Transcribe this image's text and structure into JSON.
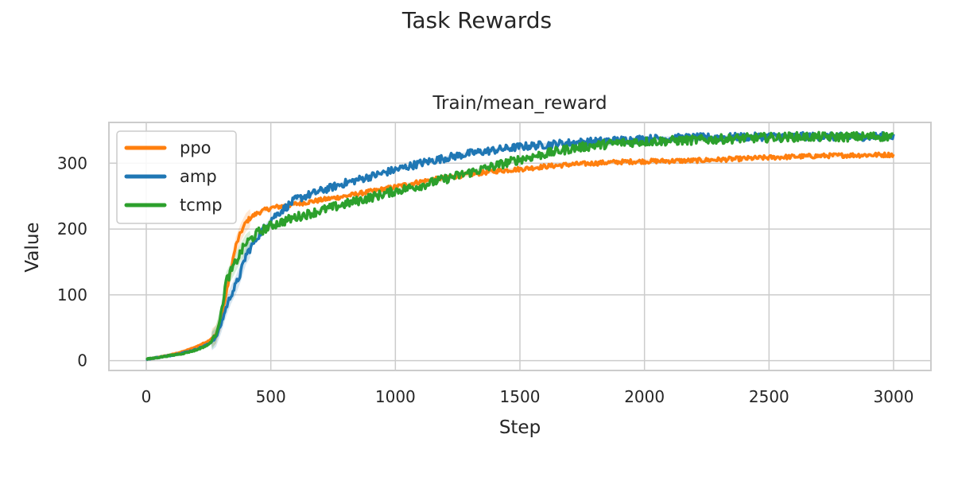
{
  "chart_data": {
    "type": "line",
    "title": "Task Rewards",
    "subtitle": "Train/mean_reward",
    "xlabel": "Step",
    "ylabel": "Value",
    "xlim": [
      -150,
      3150
    ],
    "ylim": [
      -15,
      362
    ],
    "xticks": [
      0,
      500,
      1000,
      1500,
      2000,
      2500,
      3000
    ],
    "yticks": [
      0,
      100,
      200,
      300
    ],
    "grid": true,
    "legend_position": "top-left",
    "series": [
      {
        "name": "ppo",
        "color": "#ff7f0e",
        "x": [
          0,
          50,
          100,
          150,
          200,
          250,
          280,
          300,
          320,
          340,
          360,
          380,
          400,
          420,
          450,
          500,
          600,
          700,
          800,
          900,
          1000,
          1100,
          1200,
          1300,
          1400,
          1500,
          1600,
          1700,
          1800,
          1900,
          2000,
          2200,
          2400,
          2600,
          2800,
          3000
        ],
        "y": [
          2,
          5,
          9,
          14,
          21,
          30,
          40,
          60,
          100,
          140,
          175,
          195,
          210,
          218,
          225,
          232,
          238,
          244,
          250,
          257,
          264,
          272,
          278,
          283,
          288,
          291,
          295,
          298,
          300,
          302,
          303,
          304,
          307,
          310,
          312,
          313
        ]
      },
      {
        "name": "amp",
        "color": "#1f77b4",
        "x": [
          0,
          50,
          100,
          150,
          200,
          250,
          280,
          300,
          320,
          340,
          360,
          380,
          400,
          450,
          500,
          550,
          600,
          700,
          800,
          900,
          1000,
          1100,
          1200,
          1300,
          1400,
          1500,
          1600,
          1700,
          1800,
          1900,
          2000,
          2200,
          2400,
          2600,
          2800,
          3000
        ],
        "y": [
          2,
          5,
          8,
          12,
          17,
          25,
          35,
          55,
          80,
          100,
          115,
          135,
          160,
          190,
          215,
          230,
          245,
          258,
          270,
          280,
          290,
          300,
          308,
          315,
          320,
          325,
          328,
          331,
          333,
          335,
          337,
          339,
          340,
          341,
          340,
          341
        ]
      },
      {
        "name": "tcmp",
        "color": "#2ca02c",
        "x": [
          0,
          50,
          100,
          150,
          200,
          250,
          280,
          300,
          320,
          340,
          360,
          380,
          400,
          450,
          500,
          600,
          700,
          800,
          900,
          1000,
          1100,
          1200,
          1300,
          1400,
          1500,
          1600,
          1700,
          1800,
          1900,
          2000,
          2200,
          2400,
          2600,
          2800,
          3000
        ],
        "y": [
          2,
          5,
          8,
          11,
          16,
          24,
          40,
          70,
          120,
          135,
          150,
          165,
          178,
          195,
          205,
          218,
          228,
          238,
          248,
          258,
          266,
          276,
          286,
          296,
          306,
          314,
          322,
          327,
          331,
          333,
          335,
          338,
          340,
          340,
          341
        ]
      }
    ]
  }
}
